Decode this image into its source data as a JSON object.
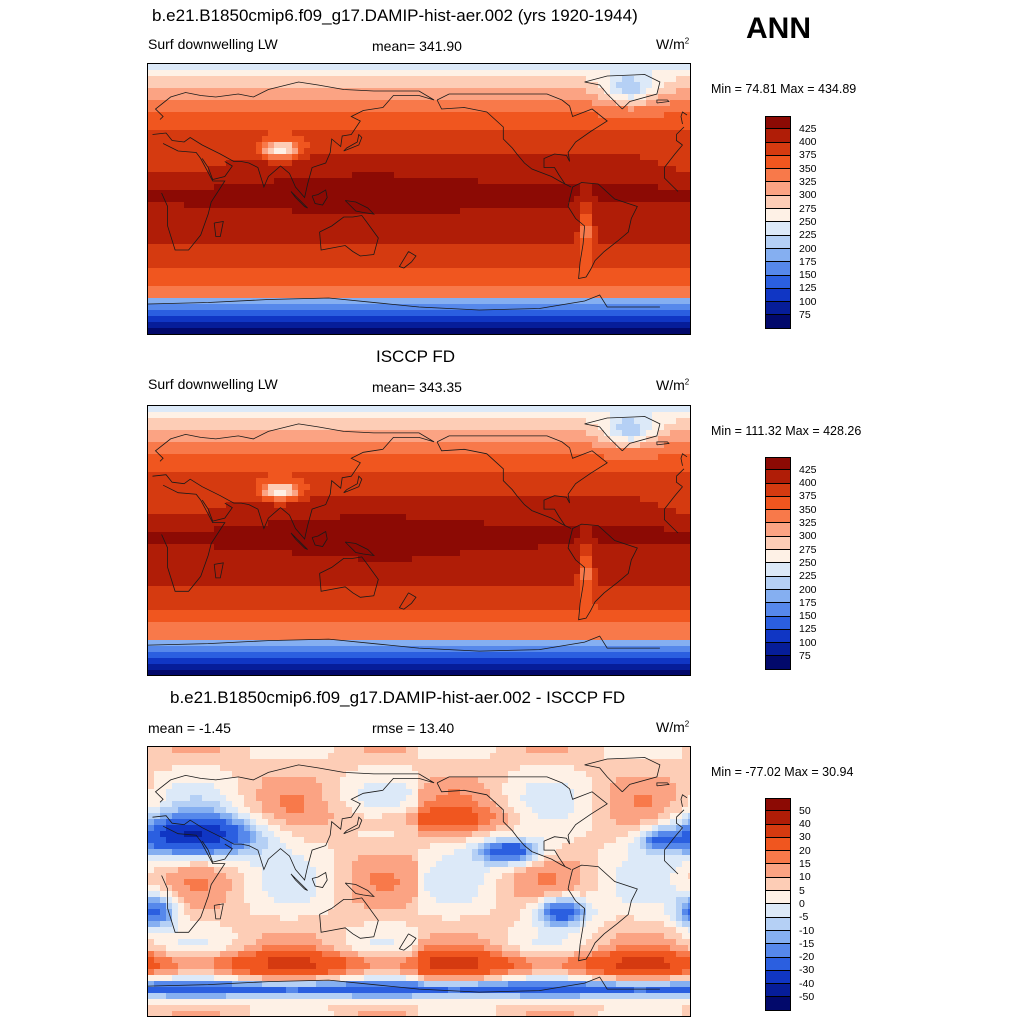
{
  "season": "ANN",
  "panels": [
    {
      "title": "b.e21.B1850cmip6.f09_g17.DAMIP-hist-aer.002 (yrs 1920-1944)",
      "left_label": "Surf downwelling LW",
      "center_label": "mean= 341.90",
      "units": "W/m",
      "units_sup": "2",
      "minmax": "Min =  74.81 Max = 434.89",
      "field": "model",
      "colorbar": {
        "labels": [
          "425",
          "400",
          "375",
          "350",
          "325",
          "300",
          "275",
          "250",
          "225",
          "200",
          "175",
          "150",
          "125",
          "100",
          "75"
        ],
        "colors": [
          "#8c0a04",
          "#b01d07",
          "#d53a10",
          "#f0561f",
          "#f8794a",
          "#fba383",
          "#fdcdb6",
          "#fef1e6",
          "#dce9f8",
          "#b5d0f5",
          "#85aff1",
          "#5688eb",
          "#2b5fe0",
          "#1036c4",
          "#061d99",
          "#02096b"
        ]
      }
    },
    {
      "title": "ISCCP FD",
      "left_label": "Surf downwelling LW",
      "center_label": "mean= 343.35",
      "units": "W/m",
      "units_sup": "2",
      "minmax": "Min = 111.32 Max = 428.26",
      "field": "obs",
      "colorbar": {
        "labels": [
          "425",
          "400",
          "375",
          "350",
          "325",
          "300",
          "275",
          "250",
          "225",
          "200",
          "175",
          "150",
          "125",
          "100",
          "75"
        ],
        "colors": [
          "#8c0a04",
          "#b01d07",
          "#d53a10",
          "#f0561f",
          "#f8794a",
          "#fba383",
          "#fdcdb6",
          "#fef1e6",
          "#dce9f8",
          "#b5d0f5",
          "#85aff1",
          "#5688eb",
          "#2b5fe0",
          "#1036c4",
          "#061d99",
          "#02096b"
        ]
      }
    },
    {
      "title": "b.e21.B1850cmip6.f09_g17.DAMIP-hist-aer.002 - ISCCP FD",
      "left_label": "mean =  -1.45",
      "center_label": "rmse =  13.40",
      "units": "W/m",
      "units_sup": "2",
      "minmax": "Min = -77.02 Max =  30.94",
      "field": "diff",
      "colorbar": {
        "labels": [
          "50",
          "40",
          "30",
          "20",
          "15",
          "10",
          "5",
          "0",
          "-5",
          "-10",
          "-15",
          "-20",
          "-30",
          "-40",
          "-50"
        ],
        "colors": [
          "#8c0a04",
          "#b01d07",
          "#d53a10",
          "#f0561f",
          "#f8794a",
          "#fba383",
          "#fdcdb6",
          "#fef1e6",
          "#dce9f8",
          "#b5d0f5",
          "#85aff1",
          "#5688eb",
          "#2b5fe0",
          "#1036c4",
          "#061d99",
          "#02096b"
        ]
      }
    }
  ]
}
